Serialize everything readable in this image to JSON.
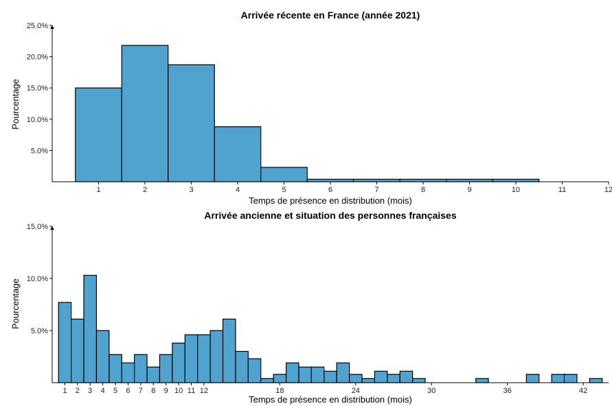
{
  "colors": {
    "bar_fill": "#4fa3ce",
    "bar_stroke": "#000000",
    "axis": "#000000",
    "background": "#ffffff"
  },
  "chart_data": [
    {
      "type": "bar",
      "title": "Arrivée récente en France (année 2021)",
      "xlabel": "Temps de présence en distribution (mois)",
      "ylabel": "Pourcentage",
      "x_ticks": [
        1,
        2,
        3,
        4,
        5,
        6,
        7,
        8,
        9,
        10,
        11,
        12
      ],
      "xlim": [
        0,
        12
      ],
      "y_ticks": [
        "5.0%",
        "10.0%",
        "15.0%",
        "20.0%",
        "25.0%"
      ],
      "ylim": [
        0,
        25
      ],
      "x": [
        1,
        2,
        3,
        4,
        5,
        6,
        7,
        8,
        9,
        10
      ],
      "values": [
        15.0,
        21.8,
        18.7,
        8.8,
        2.3,
        0.4,
        0.4,
        0.4,
        0.4,
        0.4
      ],
      "grid": false
    },
    {
      "type": "bar",
      "title": "Arrivée ancienne et situation des personnes  françaises",
      "xlabel": "Temps de présence en distribution (mois)",
      "ylabel": "Pourcentage",
      "x_ticks": [
        1,
        2,
        3,
        4,
        5,
        6,
        7,
        8,
        9,
        10,
        11,
        12,
        18,
        24,
        30,
        36,
        42
      ],
      "xlim": [
        0,
        44
      ],
      "y_ticks": [
        "5.0%",
        "10.0%",
        "15.0%"
      ],
      "ylim": [
        0,
        15
      ],
      "x": [
        1,
        2,
        3,
        4,
        5,
        6,
        7,
        8,
        9,
        10,
        11,
        12,
        13,
        14,
        15,
        16,
        17,
        18,
        19,
        20,
        21,
        22,
        23,
        24,
        25,
        26,
        27,
        28,
        29,
        34,
        38,
        40,
        41,
        43
      ],
      "values": [
        7.7,
        6.1,
        10.3,
        5.0,
        2.7,
        1.9,
        2.7,
        1.5,
        2.7,
        3.8,
        4.6,
        4.6,
        5.0,
        6.1,
        3.0,
        2.3,
        0.4,
        0.8,
        1.9,
        1.5,
        1.5,
        1.1,
        1.9,
        0.8,
        0.4,
        1.1,
        0.8,
        1.1,
        0.4,
        0.4,
        0.8,
        0.8,
        0.8,
        0.4
      ],
      "grid": false
    }
  ]
}
